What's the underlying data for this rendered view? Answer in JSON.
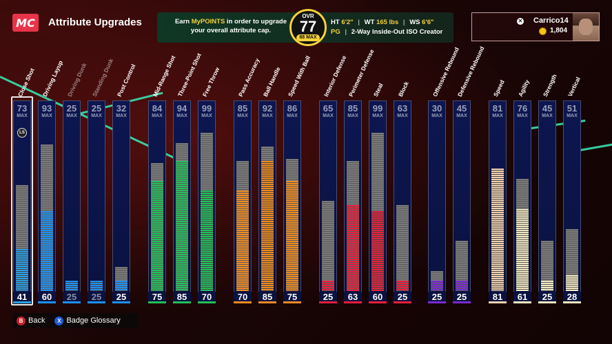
{
  "header": {
    "logo_text": "MC",
    "title": "Attribute Upgrades",
    "info_line1_pre": "Earn ",
    "info_line1_hl": "MyPOINTS",
    "info_line1_post": " in order to upgrade",
    "info_line2": "your overall attribute cap.",
    "ovr_label": "OVR",
    "ovr_value": "77",
    "ovr_max": "88 MAX",
    "ht_label": "HT",
    "ht_value": "6'2\"",
    "wt_label": "WT",
    "wt_value": "165 lbs",
    "ws_label": "WS",
    "ws_value": "6'6\"",
    "position": "PG",
    "archetype": "2-Way Inside-Out ISO Creator"
  },
  "player": {
    "gamertag": "Carrico14",
    "coins": "1,804"
  },
  "max_label": "MAX",
  "ls_label": "LS",
  "attributes": [
    {
      "name": "Close Shot",
      "max": "73",
      "current": "41",
      "color": "#2aa0e8",
      "selected": true
    },
    {
      "name": "Driving Layup",
      "max": "93",
      "current": "60",
      "color": "#1e90f0"
    },
    {
      "name": "Driving Dunk",
      "max": "25",
      "current": "25",
      "color": "#1e90f0"
    },
    {
      "name": "Standing Dunk",
      "max": "25",
      "current": "25",
      "color": "#1e90f0"
    },
    {
      "name": "Post Control",
      "max": "32",
      "current": "25",
      "color": "#1e90f0"
    },
    {
      "name": "Mid-Range Shot",
      "max": "84",
      "current": "75",
      "color": "#22c05a"
    },
    {
      "name": "Three-Point Shot",
      "max": "94",
      "current": "85",
      "color": "#22c05a"
    },
    {
      "name": "Free Throw",
      "max": "99",
      "current": "70",
      "color": "#22c05a"
    },
    {
      "name": "Pass Accuracy",
      "max": "85",
      "current": "70",
      "color": "#f08a20"
    },
    {
      "name": "Ball Handle",
      "max": "92",
      "current": "85",
      "color": "#f08a20"
    },
    {
      "name": "Speed With Ball",
      "max": "86",
      "current": "75",
      "color": "#f08a20"
    },
    {
      "name": "Interior Defense",
      "max": "65",
      "current": "25",
      "color": "#e8203c"
    },
    {
      "name": "Perimeter Defense",
      "max": "85",
      "current": "63",
      "color": "#e8203c"
    },
    {
      "name": "Steal",
      "max": "99",
      "current": "60",
      "color": "#e8203c"
    },
    {
      "name": "Block",
      "max": "63",
      "current": "25",
      "color": "#e8203c"
    },
    {
      "name": "Offensive Rebound",
      "max": "30",
      "current": "25",
      "color": "#7a2ad0"
    },
    {
      "name": "Defensive Rebound",
      "max": "45",
      "current": "25",
      "color": "#7a2ad0"
    },
    {
      "name": "Speed",
      "max": "81",
      "current": "81",
      "color": "#f2d2b0"
    },
    {
      "name": "Agility",
      "max": "76",
      "current": "61",
      "color": "#f2e8c0"
    },
    {
      "name": "Strength",
      "max": "45",
      "current": "25",
      "color": "#f2e8c0"
    },
    {
      "name": "Vertical",
      "max": "51",
      "current": "28",
      "color": "#f2e8c0"
    }
  ],
  "footer": {
    "back_btn_glyph": "B",
    "back_label": "Back",
    "glossary_btn_glyph": "X",
    "glossary_label": "Badge Glossary"
  }
}
